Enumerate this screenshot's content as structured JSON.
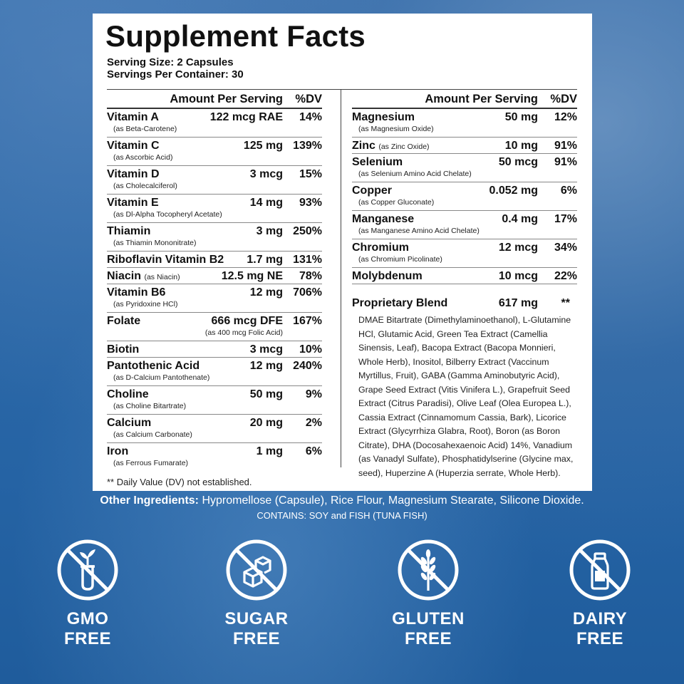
{
  "title": "Supplement Facts",
  "serving_size": "Serving Size: 2 Capsules",
  "servings_per_container": "Servings Per Container: 30",
  "header": {
    "amount": "Amount Per Serving",
    "dv": "%DV"
  },
  "left_rows": [
    {
      "name": "Vitamin A",
      "sub": "(as Beta-Carotene)",
      "amount": "122 mcg RAE",
      "dv": "14%"
    },
    {
      "name": "Vitamin C",
      "sub": "(as Ascorbic Acid)",
      "amount": "125 mg",
      "dv": "139%"
    },
    {
      "name": "Vitamin D",
      "sub": "(as Cholecalciferol)",
      "amount": "3 mcg",
      "dv": "15%"
    },
    {
      "name": "Vitamin E",
      "sub": "(as Dl-Alpha Tocopheryl Acetate)",
      "amount": "14 mg",
      "dv": "93%"
    },
    {
      "name": "Thiamin",
      "sub": "(as Thiamin Mononitrate)",
      "amount": "3 mg",
      "dv": "250%"
    },
    {
      "name": "Riboflavin Vitamin B2",
      "sub": "",
      "amount": "1.7 mg",
      "dv": "131%"
    },
    {
      "name": "Niacin",
      "inline_sub": "(as Niacin)",
      "amount": "12.5 mg NE",
      "dv": "78%"
    },
    {
      "name": "Vitamin B6",
      "sub": "(as Pyridoxine HCl)",
      "amount": "12 mg",
      "dv": "706%"
    },
    {
      "name": "Folate",
      "amount_sub": "(as 400 mcg Folic Acid)",
      "amount": "666 mcg DFE",
      "dv": "167%"
    },
    {
      "name": "Biotin",
      "sub": "",
      "amount": "3 mcg",
      "dv": "10%"
    },
    {
      "name": "Pantothenic Acid",
      "sub": "(as D-Calcium Pantothenate)",
      "amount": "12 mg",
      "dv": "240%"
    },
    {
      "name": "Choline",
      "sub": "(as Choline Bitartrate)",
      "amount": "50 mg",
      "dv": "9%"
    },
    {
      "name": "Calcium",
      "sub": "(as Calcium Carbonate)",
      "amount": "20 mg",
      "dv": "2%"
    },
    {
      "name": "Iron",
      "sub": "(as Ferrous Fumarate)",
      "amount": "1 mg",
      "dv": "6%"
    }
  ],
  "right_rows": [
    {
      "name": "Magnesium",
      "sub": "(as Magnesium Oxide)",
      "amount": "50 mg",
      "dv": "12%"
    },
    {
      "name": "Zinc",
      "inline_sub": "(as Zinc Oxide)",
      "amount": "10 mg",
      "dv": "91%"
    },
    {
      "name": "Selenium",
      "sub": "(as Selenium Amino Acid Chelate)",
      "amount": "50 mcg",
      "dv": "91%"
    },
    {
      "name": "Copper",
      "sub": "(as Copper Gluconate)",
      "amount": "0.052 mg",
      "dv": "6%"
    },
    {
      "name": "Manganese",
      "sub": "(as Manganese Amino Acid Chelate)",
      "amount": "0.4 mg",
      "dv": "17%"
    },
    {
      "name": "Chromium",
      "sub": "(as Chromium Picolinate)",
      "amount": "12 mcg",
      "dv": "34%"
    },
    {
      "name": "Molybdenum",
      "sub": "",
      "amount": "10 mcg",
      "dv": "22%"
    }
  ],
  "blend": {
    "name": "Proprietary Blend",
    "amount": "617 mg",
    "dv": "**",
    "ingredients": "DMAE Bitartrate (Dimethylaminoethanol), L-Glutamine HCl, Glutamic Acid, Green Tea Extract (Camellia Sinensis, Leaf), Bacopa Extract (Bacopa Monnieri, Whole Herb), Inositol, Bilberry Extract (Vaccinum Myrtillus, Fruit), GABA (Gamma Aminobutyric Acid), Grape Seed Extract (Vitis Vinifera L.), Grapefruit Seed Extract (Citrus Paradisi), Olive Leaf (Olea Europea L.), Cassia Extract (Cinnamomum Cassia, Bark), Licorice Extract (Glycyrrhiza Glabra, Root), Boron (as Boron Citrate), DHA (Docosahexaenoic Acid) 14%, Vanadium (as Vanadyl Sulfate), Phosphatidylserine (Glycine max, seed), Huperzine A (Huperzia serrate, Whole Herb)."
  },
  "footnote": "** Daily Value (DV) not established.",
  "other_ingredients": {
    "label": "Other Ingredients:",
    "text": "Hypromellose (Capsule), Rice Flour, Magnesium Stearate, Silicone Dioxide."
  },
  "contains": "CONTAINS: SOY and FISH (TUNA FISH)",
  "badges": [
    {
      "line1": "GMO",
      "line2": "FREE",
      "icon": "no-gmo-icon"
    },
    {
      "line1": "SUGAR",
      "line2": "FREE",
      "icon": "no-sugar-icon"
    },
    {
      "line1": "GLUTEN",
      "line2": "FREE",
      "icon": "no-gluten-icon"
    },
    {
      "line1": "DAIRY",
      "line2": "FREE",
      "icon": "no-dairy-icon"
    }
  ],
  "colors": {
    "background": "#2f6fae",
    "panel": "#ffffff",
    "text": "#111111",
    "badge": "#ffffff"
  }
}
